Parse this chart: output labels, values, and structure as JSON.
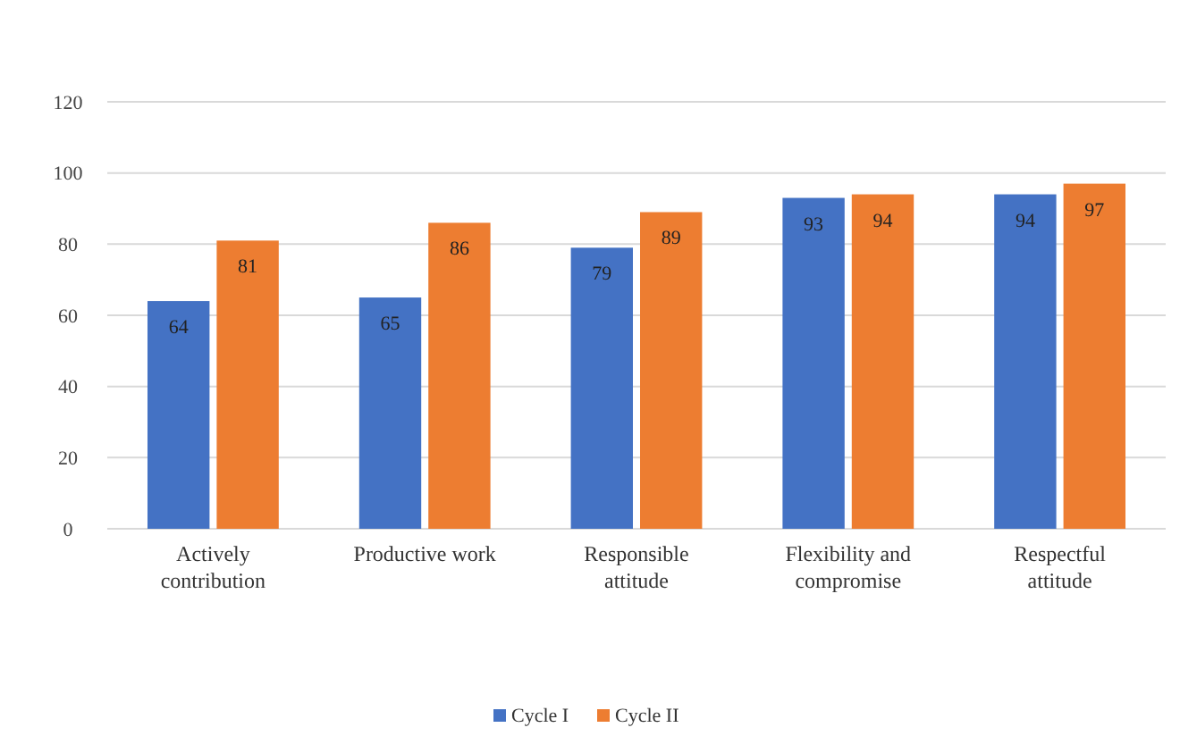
{
  "chart_data": {
    "type": "bar",
    "categories": [
      "Actively contribution",
      "Productive work",
      "Responsible attitude",
      "Flexibility and compromise",
      "Respectful attitude"
    ],
    "series": [
      {
        "name": "Cycle I",
        "color": "#4472c4",
        "values": [
          64,
          65,
          79,
          93,
          94
        ]
      },
      {
        "name": "Cycle II",
        "color": "#ed7d31",
        "values": [
          81,
          86,
          89,
          94,
          97
        ]
      }
    ],
    "ylim": [
      0,
      120
    ],
    "yticks": [
      0,
      20,
      40,
      60,
      80,
      100,
      120
    ],
    "grid": "y",
    "legend": "bottom",
    "data_labels": true
  }
}
